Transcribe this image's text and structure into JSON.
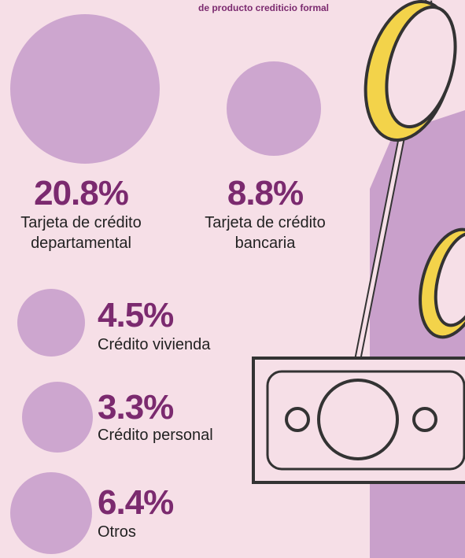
{
  "header": {
    "subtitle": "de producto crediticio formal"
  },
  "items": [
    {
      "value": "20.8%",
      "label_lines": [
        "Tarjeta de crédito",
        "departamental"
      ]
    },
    {
      "value": "8.8%",
      "label_lines": [
        "Tarjeta de crédito",
        "bancaria"
      ]
    },
    {
      "value": "4.5%",
      "label_lines": [
        "Crédito vivienda"
      ]
    },
    {
      "value": "3.3%",
      "label_lines": [
        "Crédito personal"
      ]
    },
    {
      "value": "6.4%",
      "label_lines": [
        "Otros"
      ]
    }
  ]
}
